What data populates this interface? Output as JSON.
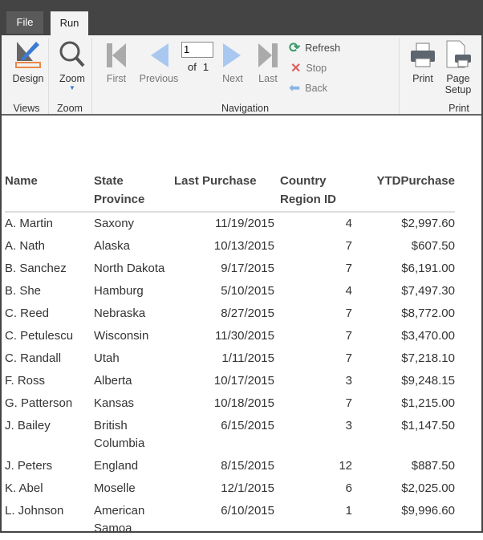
{
  "tabs": [
    {
      "label": "File"
    },
    {
      "label": "Run"
    }
  ],
  "ribbon": {
    "design": "Design",
    "zoom": "Zoom",
    "first": "First",
    "previous": "Previous",
    "page": "1",
    "of": "of",
    "total": "1",
    "next": "Next",
    "last": "Last",
    "refresh": "Refresh",
    "stop": "Stop",
    "back": "Back",
    "print": "Print",
    "page_setup_1": "Page",
    "page_setup_2": "Setup",
    "groups": {
      "views": "Views",
      "zoom": "Zoom",
      "navigation": "Navigation",
      "print": "Print"
    }
  },
  "table": {
    "headers": [
      "Name",
      "State Province",
      "Last Purchase",
      "Country Region ID",
      "YTDPurchase"
    ],
    "rows": [
      [
        "A. Martin",
        "Saxony",
        "11/19/2015",
        "4",
        "$2,997.60"
      ],
      [
        "A. Nath",
        "Alaska",
        "10/13/2015",
        "7",
        "$607.50"
      ],
      [
        "B. Sanchez",
        "North Dakota",
        "9/17/2015",
        "7",
        "$6,191.00"
      ],
      [
        "B. She",
        "Hamburg",
        "5/10/2015",
        "4",
        "$7,497.30"
      ],
      [
        "C. Reed",
        "Nebraska",
        "8/27/2015",
        "7",
        "$8,772.00"
      ],
      [
        "C. Petulescu",
        "Wisconsin",
        "11/30/2015",
        "7",
        "$3,470.00"
      ],
      [
        "C. Randall",
        "Utah",
        "1/11/2015",
        "7",
        "$7,218.10"
      ],
      [
        "F. Ross",
        "Alberta",
        "10/17/2015",
        "3",
        "$9,248.15"
      ],
      [
        "G. Patterson",
        "Kansas",
        "10/18/2015",
        "7",
        "$1,215.00"
      ],
      [
        "J. Bailey",
        "British Columbia",
        "6/15/2015",
        "3",
        "$1,147.50"
      ],
      [
        "J. Peters",
        "England",
        "8/15/2015",
        "12",
        "$887.50"
      ],
      [
        "K. Abel",
        "Moselle",
        "12/1/2015",
        "6",
        "$2,025.00"
      ],
      [
        "L. Johnson",
        "American Samoa",
        "6/10/2015",
        "1",
        "$9,996.60"
      ]
    ]
  }
}
